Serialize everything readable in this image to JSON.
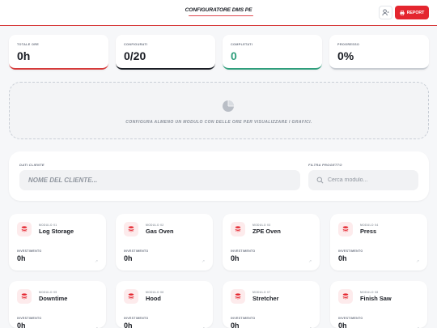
{
  "header": {
    "title": "CONFIGURATORE DMS PE",
    "report_label": "REPORT"
  },
  "stats": [
    {
      "label": "TOTALE ORE",
      "value": "0h",
      "accent": "#d63a3a"
    },
    {
      "label": "CONFIGURATI",
      "value": "0/20",
      "accent": "#1a1d24"
    },
    {
      "label": "COMPLETATI",
      "value": "0",
      "accent": "#2e9e7b"
    },
    {
      "label": "PROGRESSO",
      "value": "0%",
      "accent": "#c8ccd2"
    }
  ],
  "charts_placeholder": {
    "text": "CONFIGURA ALMENO UN MODULO CON DELLE ORE PER VISUALIZZARE I GRAFICI."
  },
  "filters": {
    "client_label": "DATI CLIENTE",
    "client_placeholder": "NOME DEL CLIENTE...",
    "project_label": "FILTRA PROGETTO",
    "search_placeholder": "Cerca modulo..."
  },
  "modules": [
    {
      "tag": "MODULO 01",
      "name": "Log Storage",
      "inv_label": "INVESTIMENTO",
      "value": "0h"
    },
    {
      "tag": "MODULO 02",
      "name": "Gas Oven",
      "inv_label": "INVESTIMENTO",
      "value": "0h"
    },
    {
      "tag": "MODULO 03",
      "name": "ZPE Oven",
      "inv_label": "INVESTIMENTO",
      "value": "0h"
    },
    {
      "tag": "MODULO 04",
      "name": "Press",
      "inv_label": "INVESTIMENTO",
      "value": "0h"
    },
    {
      "tag": "MODULO 05",
      "name": "Downtime",
      "inv_label": "INVESTIMENTO",
      "value": "0h"
    },
    {
      "tag": "MODULO 06",
      "name": "Hood",
      "inv_label": "INVESTIMENTO",
      "value": "0h"
    },
    {
      "tag": "MODULO 07",
      "name": "Stretcher",
      "inv_label": "INVESTIMENTO",
      "value": "0h"
    },
    {
      "tag": "MODULO 08",
      "name": "Finish Saw",
      "inv_label": "INVESTIMENTO",
      "value": "0h"
    }
  ],
  "colors": {
    "brand": "#e4262f",
    "accent_soft": "#fdebec"
  }
}
